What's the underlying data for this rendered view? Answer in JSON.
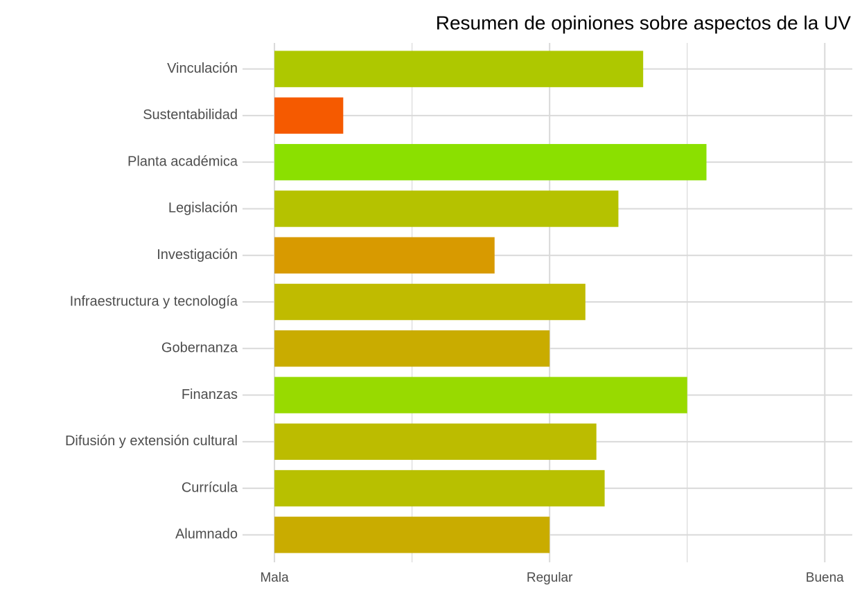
{
  "chart_data": {
    "type": "bar",
    "orientation": "horizontal",
    "title": "Resumen de opiniones sobre aspectos de la UV",
    "categories": [
      "Vinculación",
      "Sustentabilidad",
      "Planta académica",
      "Legislación",
      "Investigación",
      "Infraestructura y tecnología",
      "Gobernanza",
      "Finanzas",
      "Difusión y extensión cultural",
      "Currícula",
      "Alumnado"
    ],
    "values": [
      2.34,
      1.25,
      2.57,
      2.25,
      1.8,
      2.13,
      2.0,
      2.5,
      2.17,
      2.2,
      2.0
    ],
    "colors": [
      "#aec800",
      "#f55a00",
      "#8be000",
      "#b5c200",
      "#d89a00",
      "#c0bb00",
      "#c9ac00",
      "#98da00",
      "#bcbc00",
      "#b8c000",
      "#c9ac00"
    ],
    "xlim": [
      0.884,
      3.1
    ],
    "xticks": [
      {
        "value": 1,
        "label": "Mala"
      },
      {
        "value": 2,
        "label": "Regular"
      },
      {
        "value": 3,
        "label": "Buena"
      }
    ],
    "minor_xticks": [
      1.5,
      2.5
    ],
    "grid": true
  }
}
